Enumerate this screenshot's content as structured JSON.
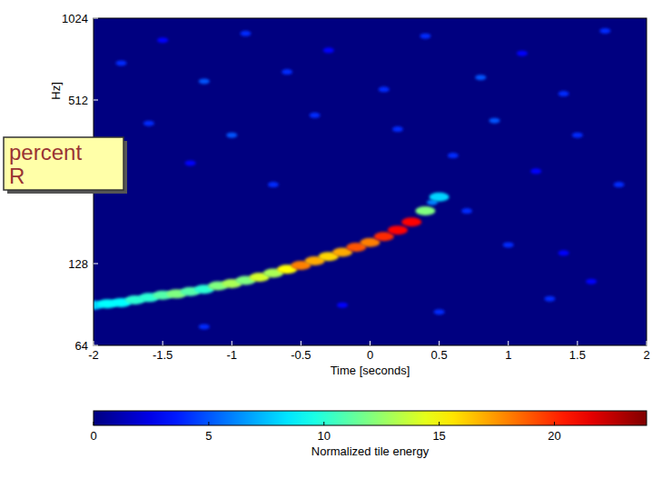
{
  "chart_data": {
    "type": "heatmap",
    "xlabel": "Time [seconds]",
    "ylabel": "Hz]",
    "annotation": [
      "percent",
      "R"
    ],
    "xlim": [
      -2,
      2
    ],
    "xticks": [
      -2,
      -1.5,
      -1,
      -0.5,
      0,
      0.5,
      1,
      1.5,
      2
    ],
    "ylim": [
      64,
      1024
    ],
    "yticks": [
      64,
      128,
      512,
      1024
    ],
    "log": "y",
    "points": {
      "x": [
        -2.0,
        -1.9,
        -1.8,
        -1.7,
        -1.6,
        -1.5,
        -1.4,
        -1.3,
        -1.2,
        -1.1,
        -1.0,
        -0.9,
        -0.8,
        -0.7,
        -0.6,
        -0.5,
        -0.4,
        -0.3,
        -0.2,
        -0.1,
        0.0,
        0.1,
        0.2,
        0.3,
        0.4,
        0.45,
        0.5,
        -1.8,
        -1.5,
        -1.2,
        -0.9,
        -0.6,
        -0.3,
        0.1,
        0.4,
        0.8,
        1.1,
        1.4,
        1.7,
        -1.6,
        -1.0,
        -0.4,
        0.2,
        0.9,
        1.5,
        -1.3,
        0.6,
        1.2,
        -0.7,
        1.8,
        0.7,
        1.0,
        1.4,
        -0.2,
        0.5,
        1.3,
        -1.2,
        1.6
      ],
      "y": [
        90,
        91,
        92,
        94,
        96,
        98,
        99,
        101,
        103,
        106,
        108,
        111,
        114,
        118,
        122,
        126,
        131,
        136,
        141,
        147,
        153,
        161,
        170,
        182,
        200,
        215,
        225,
        700,
        850,
        600,
        900,
        650,
        780,
        560,
        880,
        620,
        760,
        540,
        920,
        420,
        380,
        450,
        400,
        430,
        380,
        300,
        320,
        280,
        250,
        250,
        200,
        150,
        140,
        90,
        85,
        95,
        75,
        110
      ],
      "values": [
        8,
        9,
        9,
        10,
        10,
        11,
        12,
        11,
        10,
        12,
        13,
        12,
        14,
        13,
        15,
        18,
        17,
        16,
        17,
        19,
        18,
        20,
        21,
        21,
        12,
        6,
        8,
        4,
        3,
        5,
        4,
        4,
        3,
        4,
        4,
        5,
        3,
        4,
        4,
        4,
        5,
        4,
        4,
        5,
        4,
        3,
        4,
        3,
        4,
        4,
        4,
        4,
        3,
        3,
        4,
        4,
        4,
        3
      ]
    },
    "colorbar": {
      "range": [
        0,
        24
      ],
      "ticks": [
        0,
        5,
        10,
        15,
        20
      ],
      "label": "Normalized tile energy"
    }
  }
}
